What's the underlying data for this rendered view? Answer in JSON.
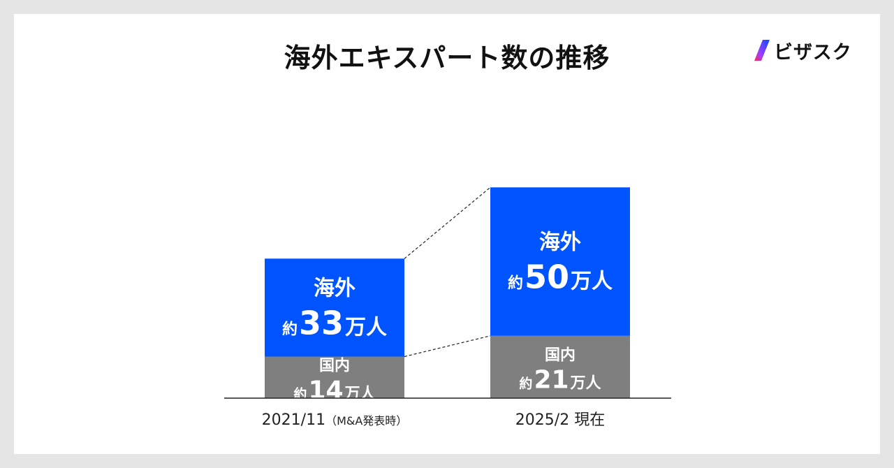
{
  "header": {
    "title": "海外エキスパート数の推移",
    "logo_text": "ビザスク"
  },
  "colors": {
    "overseas": "#0054ff",
    "domestic": "#7f7f7f",
    "background": "#ffffff",
    "frame": "#e5e5e5"
  },
  "chart_data": {
    "type": "bar",
    "stacked": true,
    "categories": [
      "2021/11",
      "2025/2 現在"
    ],
    "category_notes": [
      "（M&A発表時）",
      ""
    ],
    "series": [
      {
        "name": "国内",
        "values": [
          14,
          21
        ],
        "labels": [
          {
            "prefix": "約",
            "number": "14",
            "suffix": "万人"
          },
          {
            "prefix": "約",
            "number": "21",
            "suffix": "万人"
          }
        ]
      },
      {
        "name": "海外",
        "values": [
          33,
          50
        ],
        "labels": [
          {
            "prefix": "約",
            "number": "33",
            "suffix": "万人"
          },
          {
            "prefix": "約",
            "number": "50",
            "suffix": "万人"
          }
        ]
      }
    ],
    "unit": "万人",
    "grid": false,
    "legend": "none",
    "title": "海外エキスパート数の推移"
  }
}
